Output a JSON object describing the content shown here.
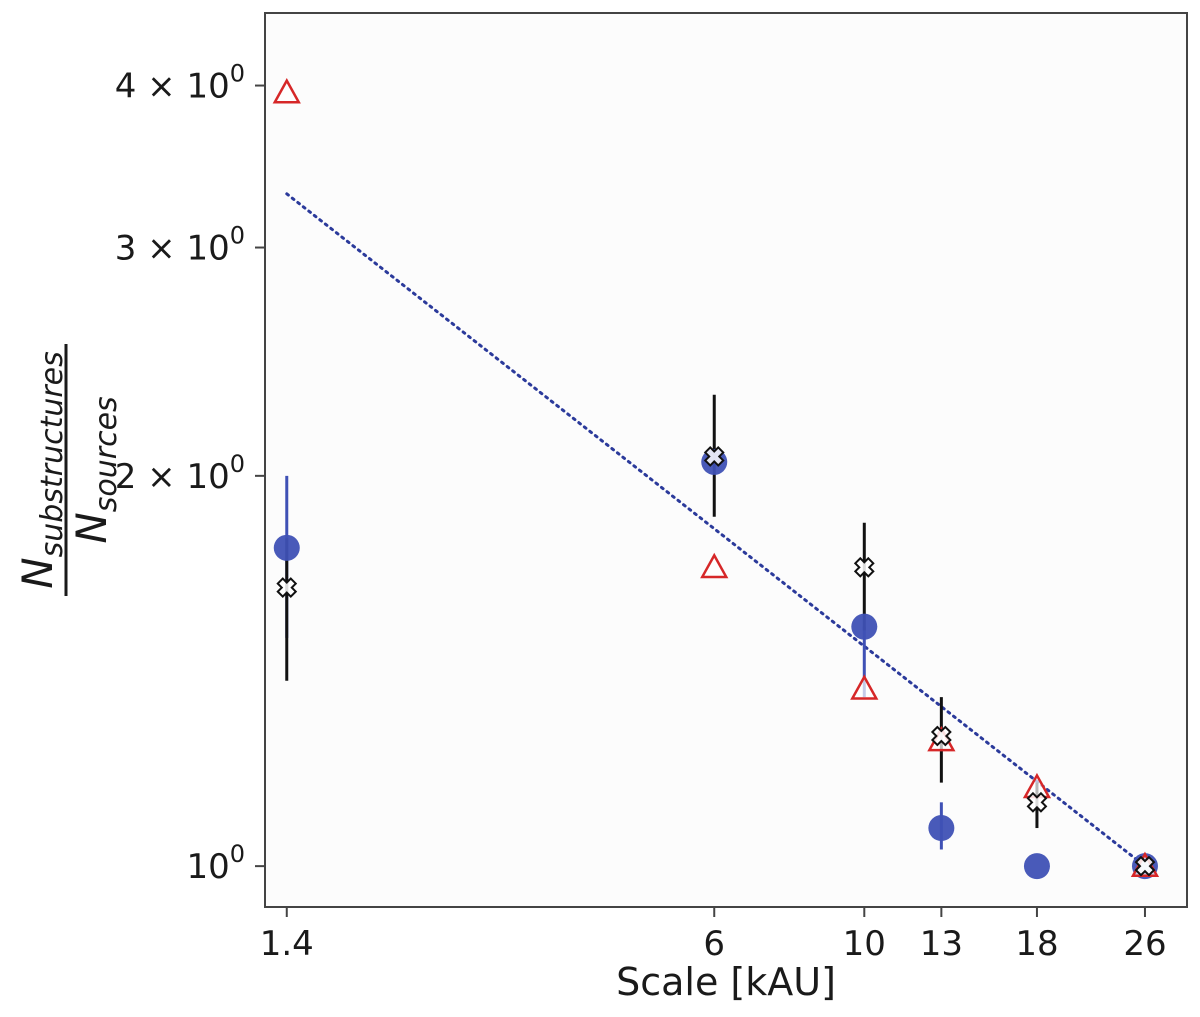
{
  "chart_data": {
    "type": "scatter",
    "title": "",
    "xlabel": "Scale [kAU]",
    "ylabel": {
      "numerator_base": "N",
      "numerator_sub": "substructures",
      "denominator_base": "N",
      "denominator_sub": "sources"
    },
    "xscale": "log",
    "yscale": "log",
    "xlim": [
      1.3,
      30
    ],
    "ylim": [
      0.93,
      4.55
    ],
    "x_ticks": [
      {
        "value": 1.4,
        "label": "1.4"
      },
      {
        "value": 6,
        "label": "6"
      },
      {
        "value": 10,
        "label": "10"
      },
      {
        "value": 13,
        "label": "13"
      },
      {
        "value": 18,
        "label": "18"
      },
      {
        "value": 26,
        "label": "26"
      }
    ],
    "y_ticks": [
      {
        "value": 1,
        "base": "10",
        "exp": "0",
        "coef": ""
      },
      {
        "value": 2,
        "base": "10",
        "exp": "0",
        "coef": "2 × "
      },
      {
        "value": 3,
        "base": "10",
        "exp": "0",
        "coef": "3 × "
      },
      {
        "value": 4,
        "base": "10",
        "exp": "0",
        "coef": "4 × "
      }
    ],
    "series": [
      {
        "marker": "circle",
        "color": "#3f51b5",
        "points": [
          {
            "x": 1.4,
            "y": 1.76,
            "err_lo": 0.26,
            "err_hi": 0.24
          },
          {
            "x": 6,
            "y": 2.05
          },
          {
            "x": 10,
            "y": 1.53,
            "err_lo": 0.18,
            "err_hi": 0.0
          },
          {
            "x": 13,
            "y": 1.07,
            "err_lo": 0.04,
            "err_hi": 0.05
          },
          {
            "x": 18,
            "y": 1.0
          },
          {
            "x": 26,
            "y": 1.0
          }
        ]
      },
      {
        "marker": "cross",
        "color": "#111111",
        "points": [
          {
            "x": 1.4,
            "y": 1.64,
            "err_lo": 0.25,
            "err_hi": 0.15
          },
          {
            "x": 6,
            "y": 2.07,
            "err_lo": 0.21,
            "err_hi": 0.24
          },
          {
            "x": 10,
            "y": 1.7,
            "err_lo": 0.18,
            "err_hi": 0.14
          },
          {
            "x": 13,
            "y": 1.26,
            "err_lo": 0.1,
            "err_hi": 0.09
          },
          {
            "x": 18,
            "y": 1.12,
            "err_lo": 0.05,
            "err_hi": 0.04
          },
          {
            "x": 26,
            "y": 1.0
          }
        ]
      },
      {
        "marker": "triangle",
        "color": "#d62728",
        "points": [
          {
            "x": 1.4,
            "y": 3.95
          },
          {
            "x": 6,
            "y": 1.7
          },
          {
            "x": 10,
            "y": 1.37
          },
          {
            "x": 13,
            "y": 1.25
          },
          {
            "x": 18,
            "y": 1.15
          },
          {
            "x": 26,
            "y": 1.0
          }
        ]
      }
    ],
    "fit_line": {
      "style": "dotted",
      "color": "#2b3a9b",
      "points": [
        {
          "x": 1.4,
          "y": 3.3
        },
        {
          "x": 26,
          "y": 1.0
        }
      ]
    },
    "grid": false,
    "legend": "none"
  }
}
